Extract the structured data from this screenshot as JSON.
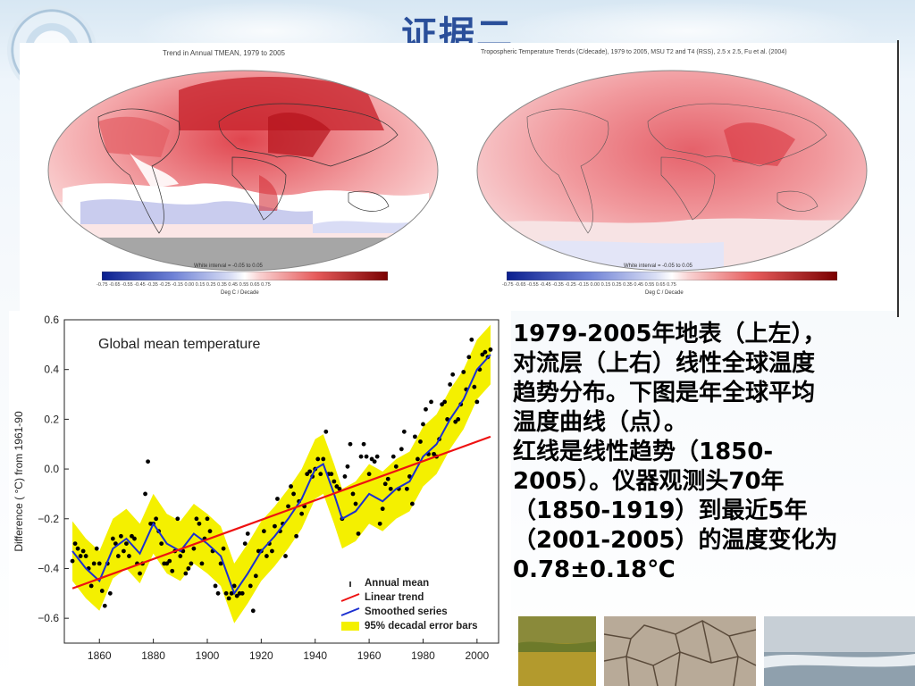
{
  "slide": {
    "title": "证据二",
    "description_lines": [
      "1979-2005年地表（上左），",
      "对流层（上右）线性全球温度",
      "趋势分布。下图是年全球平均",
      "温度曲线（点）。",
      "红线是线性趋势（1850-",
      "2005）。仪器观测头70年",
      "（1850-1919）到最近5年",
      "（2001-2005）的温度变化为",
      "0.78±0.18℃"
    ]
  },
  "maps": {
    "left": {
      "title": "Trend in Annual TMEAN, 1979 to 2005",
      "white_interval": "White interval = -0.05 to 0.05",
      "colorbar_ticks": "-0.75 -0.65 -0.55 -0.45 -0.35 -0.25 -0.15   0.00   0.15  0.25  0.35  0.45  0.55  0.65  0.75",
      "colorbar_unit": "Deg C / Decade"
    },
    "right": {
      "title": "Tropospheric Temperature Trends (C/decade), 1979 to 2005, MSU T2 and T4 (RSS), 2.5 x 2.5, Fu et al. (2004)",
      "white_interval": "White interval = -0.05 to 0.05",
      "colorbar_ticks": "-0.75 -0.65 -0.55 -0.45 -0.35 -0.25 -0.15   0.00   0.15  0.25  0.35  0.45  0.55  0.65  0.75",
      "colorbar_unit": "Deg C / Decade"
    },
    "colors": {
      "warm": "#d8202a",
      "cool": "#3a4fb0",
      "land_missing": "#aaaaaa"
    }
  },
  "chart_data": {
    "type": "scatter",
    "title": "Global mean temperature",
    "ylabel": "Difference ( °C) from 1961-90",
    "xlabel": "",
    "xlim": [
      1847,
      2008
    ],
    "ylim": [
      -0.7,
      0.6
    ],
    "xticks": [
      1860,
      1880,
      1900,
      1920,
      1940,
      1960,
      1980,
      2000
    ],
    "yticks": [
      0.6,
      0.4,
      0.2,
      0.0,
      -0.2,
      -0.4,
      -0.6
    ],
    "ytick_labels": [
      "0.6",
      "0.4",
      "0.2",
      "0.0",
      "−0.2",
      "−0.4",
      "−0.6"
    ],
    "legend": [
      {
        "label": "Annual mean",
        "color": "#000000",
        "style": "point"
      },
      {
        "label": "Linear trend",
        "color": "#ee1111",
        "style": "line"
      },
      {
        "label": "Smoothed series",
        "color": "#1b2fd0",
        "style": "line"
      },
      {
        "label": "95% decadal error bars",
        "color": "#f4f000",
        "style": "band"
      }
    ],
    "legend_position": "bottom-right",
    "linear_trend": {
      "x": [
        1850,
        2005
      ],
      "y": [
        -0.48,
        0.13
      ]
    },
    "smoothed": {
      "x": [
        1850,
        1855,
        1860,
        1865,
        1870,
        1875,
        1880,
        1885,
        1890,
        1895,
        1900,
        1905,
        1910,
        1915,
        1920,
        1925,
        1930,
        1935,
        1940,
        1943,
        1947,
        1950,
        1955,
        1960,
        1965,
        1970,
        1975,
        1980,
        1985,
        1990,
        1995,
        2000,
        2005
      ],
      "y": [
        -0.33,
        -0.4,
        -0.45,
        -0.32,
        -0.28,
        -0.34,
        -0.22,
        -0.3,
        -0.33,
        -0.26,
        -0.3,
        -0.35,
        -0.5,
        -0.42,
        -0.33,
        -0.27,
        -0.2,
        -0.12,
        0.0,
        0.02,
        -0.1,
        -0.2,
        -0.17,
        -0.1,
        -0.13,
        -0.08,
        -0.05,
        0.05,
        0.1,
        0.2,
        0.28,
        0.4,
        0.46
      ]
    },
    "band_half_width": 0.12,
    "annual_mean": {
      "x": [
        1850,
        1851,
        1852,
        1853,
        1854,
        1855,
        1856,
        1857,
        1858,
        1859,
        1860,
        1861,
        1862,
        1863,
        1864,
        1865,
        1866,
        1867,
        1868,
        1869,
        1870,
        1871,
        1872,
        1873,
        1874,
        1875,
        1876,
        1877,
        1878,
        1879,
        1880,
        1881,
        1882,
        1883,
        1884,
        1885,
        1886,
        1887,
        1888,
        1889,
        1890,
        1891,
        1892,
        1893,
        1894,
        1895,
        1896,
        1897,
        1898,
        1899,
        1900,
        1901,
        1902,
        1903,
        1904,
        1905,
        1906,
        1907,
        1908,
        1909,
        1910,
        1911,
        1912,
        1913,
        1914,
        1915,
        1916,
        1917,
        1918,
        1919,
        1920,
        1921,
        1922,
        1923,
        1924,
        1925,
        1926,
        1927,
        1928,
        1929,
        1930,
        1931,
        1932,
        1933,
        1934,
        1935,
        1936,
        1937,
        1938,
        1939,
        1940,
        1941,
        1942,
        1943,
        1944,
        1945,
        1946,
        1947,
        1948,
        1949,
        1950,
        1951,
        1952,
        1953,
        1954,
        1955,
        1956,
        1957,
        1958,
        1959,
        1960,
        1961,
        1962,
        1963,
        1964,
        1965,
        1966,
        1967,
        1968,
        1969,
        1970,
        1971,
        1972,
        1973,
        1974,
        1975,
        1976,
        1977,
        1978,
        1979,
        1980,
        1981,
        1982,
        1983,
        1984,
        1985,
        1986,
        1987,
        1988,
        1989,
        1990,
        1991,
        1992,
        1993,
        1994,
        1995,
        1996,
        1997,
        1998,
        1999,
        2000,
        2001,
        2002,
        2003,
        2004,
        2005
      ],
      "y": [
        -0.37,
        -0.3,
        -0.32,
        -0.35,
        -0.33,
        -0.35,
        -0.4,
        -0.47,
        -0.38,
        -0.32,
        -0.38,
        -0.49,
        -0.55,
        -0.38,
        -0.5,
        -0.28,
        -0.3,
        -0.35,
        -0.27,
        -0.33,
        -0.3,
        -0.35,
        -0.27,
        -0.28,
        -0.38,
        -0.42,
        -0.38,
        -0.1,
        0.03,
        -0.22,
        -0.22,
        -0.2,
        -0.25,
        -0.3,
        -0.38,
        -0.38,
        -0.37,
        -0.41,
        -0.33,
        -0.2,
        -0.35,
        -0.33,
        -0.42,
        -0.4,
        -0.38,
        -0.32,
        -0.2,
        -0.22,
        -0.38,
        -0.28,
        -0.2,
        -0.25,
        -0.33,
        -0.47,
        -0.5,
        -0.38,
        -0.32,
        -0.5,
        -0.52,
        -0.5,
        -0.47,
        -0.51,
        -0.5,
        -0.5,
        -0.3,
        -0.26,
        -0.47,
        -0.57,
        -0.43,
        -0.33,
        -0.33,
        -0.25,
        -0.35,
        -0.3,
        -0.33,
        -0.23,
        -0.12,
        -0.25,
        -0.22,
        -0.35,
        -0.15,
        -0.07,
        -0.1,
        -0.27,
        -0.13,
        -0.18,
        -0.15,
        -0.02,
        -0.01,
        -0.03,
        0.0,
        0.04,
        -0.02,
        0.04,
        0.15,
        -0.02,
        -0.02,
        -0.05,
        -0.07,
        -0.08,
        -0.2,
        -0.03,
        0.01,
        0.1,
        -0.1,
        -0.14,
        -0.26,
        0.05,
        0.1,
        0.05,
        -0.02,
        0.04,
        0.03,
        0.05,
        -0.22,
        -0.16,
        -0.06,
        -0.04,
        -0.08,
        0.05,
        0.01,
        -0.08,
        0.08,
        0.15,
        -0.08,
        -0.03,
        -0.14,
        0.13,
        0.04,
        0.11,
        0.18,
        0.24,
        0.06,
        0.27,
        0.06,
        0.05,
        0.12,
        0.26,
        0.27,
        0.2,
        0.34,
        0.38,
        0.19,
        0.2,
        0.26,
        0.39,
        0.32,
        0.45,
        0.52,
        0.33,
        0.27,
        0.4,
        0.46,
        0.47,
        0.45,
        0.48
      ]
    }
  }
}
